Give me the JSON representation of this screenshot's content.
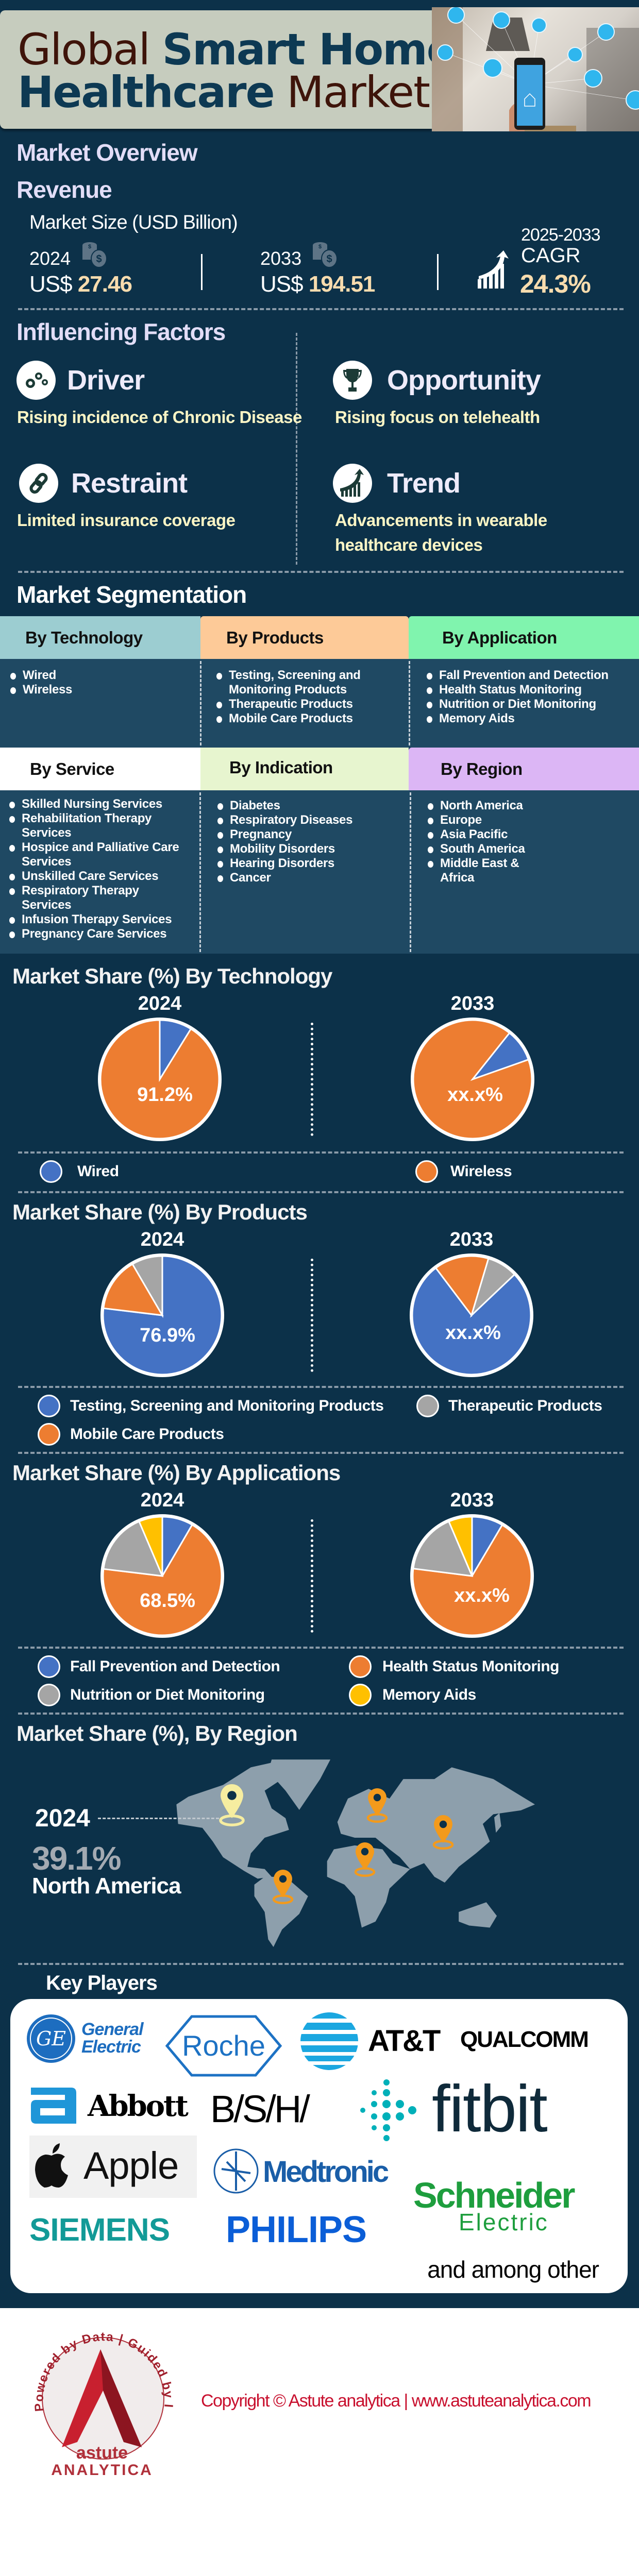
{
  "header": {
    "title_part1": "Global",
    "title_part2": "Smart Home",
    "title_part3": "Healthcare",
    "title_part4": "Market"
  },
  "overview": {
    "heading": "Market Overview",
    "revenue_heading": "Revenue",
    "market_size_label": "Market Size (USD Billion)",
    "year_start": "2024",
    "value_start_prefix": "US$",
    "value_start": "27.46",
    "year_end": "2033",
    "value_end_prefix": "US$",
    "value_end": "194.51",
    "cagr_period": "2025-2033",
    "cagr_label": "CAGR",
    "cagr_value": "24.3%"
  },
  "factors": {
    "heading": "Influencing Factors",
    "items": [
      {
        "title": "Driver",
        "icon": "gears-icon",
        "desc": "Rising incidence of Chronic Disease"
      },
      {
        "title": "Opportunity",
        "icon": "trophy-icon",
        "desc": "Rising focus on telehealth"
      },
      {
        "title": "Restraint",
        "icon": "chain-link-icon",
        "desc": "Limited insurance coverage"
      },
      {
        "title": "Trend",
        "icon": "growth-chart-icon",
        "desc": "Advancements in wearable healthcare devices"
      }
    ]
  },
  "segmentation": {
    "heading": "Market Segmentation",
    "groups": [
      {
        "title": "By Technology",
        "color": "#9ccdd1",
        "items": [
          "Wired",
          "Wireless"
        ]
      },
      {
        "title": "By Products",
        "color": "#fdca98",
        "items": [
          "Testing, Screening and Monitoring Products",
          "Therapeutic Products",
          "Mobile Care Products"
        ]
      },
      {
        "title": "By Application",
        "color": "#80f4ae",
        "items": [
          "Fall Prevention and Detection",
          "Health Status Monitoring",
          "Nutrition or Diet Monitoring",
          "Memory Aids"
        ]
      },
      {
        "title": "By Service",
        "color": "#ffffff",
        "items": [
          "Skilled Nursing Services",
          "Rehabilitation Therapy Services",
          "Hospice and Palliative Care Services",
          "Unskilled Care Services",
          "Respiratory Therapy Services",
          "Infusion Therapy Services",
          "Pregnancy Care Services"
        ]
      },
      {
        "title": "By Indication",
        "color": "#e7f5cf",
        "items": [
          "Diabetes",
          "Respiratory Diseases",
          "Pregnancy",
          "Mobility Disorders",
          "Hearing Disorders",
          "Cancer"
        ]
      },
      {
        "title": "By Region",
        "color": "#dcb6f5",
        "items": [
          "North America",
          "Europe",
          "Asia Pacific",
          "South America",
          "Middle East & Africa"
        ]
      }
    ]
  },
  "chart_data": [
    {
      "type": "pie",
      "title": "Market Share (%) By Technology",
      "categories": [
        "Wired",
        "Wireless"
      ],
      "colors": [
        "#4472c4",
        "#ed7d31"
      ],
      "series": [
        {
          "name": "2024",
          "values": [
            8.8,
            91.2
          ],
          "label": "91.2%"
        },
        {
          "name": "2033",
          "values": [
            8.9,
            91.1
          ],
          "label": "xx.x%"
        }
      ]
    },
    {
      "type": "pie",
      "title": "Market Share (%) By Products",
      "categories": [
        "Testing, Screening and Monitoring Products",
        "Therapeutic Products",
        "Mobile Care Products"
      ],
      "colors": [
        "#4472c4",
        "#a5a5a5",
        "#ed7d31"
      ],
      "series": [
        {
          "name": "2024",
          "values": [
            76.9,
            8.4,
            14.7
          ],
          "label": "76.9%"
        },
        {
          "name": "2033",
          "values": [
            76.8,
            8.3,
            14.9
          ],
          "label": "xx.x%"
        }
      ]
    },
    {
      "type": "pie",
      "title": "Market Share (%) By Applications",
      "categories": [
        "Fall Prevention and Detection",
        "Health Status Monitoring",
        "Nutrition or Diet Monitoring",
        "Memory Aids"
      ],
      "colors": [
        "#4472c4",
        "#ed7d31",
        "#a5a5a5",
        "#ffc000"
      ],
      "series": [
        {
          "name": "2024",
          "values": [
            8.4,
            68.5,
            16.7,
            6.4
          ],
          "label": "68.5%"
        },
        {
          "name": "2033",
          "values": [
            8.5,
            68.5,
            16.6,
            6.4
          ],
          "label": "xx.x%"
        }
      ]
    }
  ],
  "region": {
    "heading": "Market Share (%), By Region",
    "year": "2024",
    "share": "39.1%",
    "region_name": "North America",
    "highlight_color": "#f6eda0",
    "pin_color": "#f39a1c"
  },
  "key_players": {
    "heading": "Key Players",
    "companies": [
      "General Electric",
      "Roche",
      "AT&T",
      "Qualcomm",
      "Abbott",
      "B/S/H/",
      "fitbit",
      "Apple",
      "Medtronic",
      "Schneider Electric",
      "SIEMENS",
      "PHILIPS"
    ],
    "logo_text": {
      "ge_line1": "General",
      "ge_line2": "Electric",
      "ge_mark": "GE",
      "roche": "Roche",
      "att": "AT&T",
      "qualcomm": "QUALCOMM",
      "abbott": "Abbott",
      "bsh": "B/S/H/",
      "fitbit": "fitbit",
      "apple": "Apple",
      "medtronic": "Medtronic",
      "schneider_line1": "Schneider",
      "schneider_line2": "Electric",
      "siemens": "SIEMENS",
      "philips": "PHILIPS"
    },
    "footnote": "and among other"
  },
  "footer": {
    "logo_ring_text": "Powered by Data | Guided by Intelligence",
    "logo_name1": "astute",
    "logo_name2": "ANALYTICA",
    "copyright": "Copyright © Astute analytica | www.astuteanalytica.com"
  }
}
